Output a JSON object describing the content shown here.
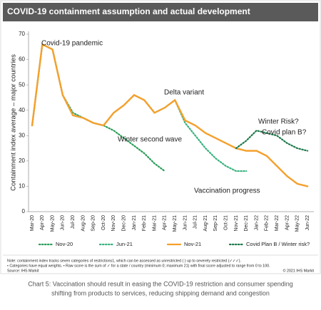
{
  "chart_data": {
    "type": "line",
    "title": "COVID-19 containment assumption and actual development",
    "y_label": "Containment index average – major countries",
    "categories": [
      "Mar-20",
      "Apr-20",
      "May-20",
      "Jun-20",
      "Jul-20",
      "Aug-20",
      "Sep-20",
      "Oct-20",
      "Nov-20",
      "Dec-20",
      "Jan-21",
      "Feb-21",
      "Mar-21",
      "Apr-21",
      "May-21",
      "Jun-21",
      "Jul-21",
      "Aug-21",
      "Sep-21",
      "Oct-21",
      "Nov-21",
      "Dec-21",
      "Jan-22",
      "Feb-22",
      "Mar-22",
      "Apr-22",
      "May-22",
      "Jun-22"
    ],
    "series": [
      {
        "name": "Nov-20",
        "color": "#2e9e5b",
        "dash": true,
        "values": [
          34,
          66,
          64,
          46,
          39,
          37,
          35,
          34,
          32,
          29,
          26,
          23,
          19,
          16,
          null,
          null,
          null,
          null,
          null,
          null,
          null,
          null,
          null,
          null,
          null,
          null,
          null,
          null
        ]
      },
      {
        "name": "Jun-21",
        "color": "#3bb27f",
        "dash": true,
        "values": [
          34,
          66,
          64,
          46,
          38,
          37,
          35,
          34,
          39,
          42,
          46,
          44,
          39,
          41,
          44,
          35,
          30,
          25,
          21,
          18,
          16,
          16,
          null,
          null,
          null,
          null,
          null,
          null
        ]
      },
      {
        "name": "Nov-21",
        "color": "#f5a02c",
        "dash": false,
        "values": [
          34,
          66,
          64,
          46,
          38,
          37,
          35,
          34,
          39,
          42,
          46,
          44,
          39,
          41,
          44,
          36,
          34,
          31,
          29,
          27,
          25,
          24,
          24,
          22,
          18,
          14,
          11,
          10
        ]
      },
      {
        "name": "Covid Plan B / Winter risk?",
        "color": "#1e7a4c",
        "dash": true,
        "values": [
          null,
          null,
          null,
          null,
          null,
          null,
          null,
          null,
          null,
          null,
          null,
          null,
          null,
          null,
          null,
          null,
          null,
          null,
          null,
          null,
          25,
          28,
          32,
          31,
          30,
          27,
          25,
          24
        ]
      }
    ],
    "annotations": [
      "Covid-19 pandemic",
      "Delta variant",
      "Winter second wave",
      "Winter Risk?",
      "Covid plan B?",
      "Vaccination progress"
    ],
    "ylim": [
      0,
      70
    ],
    "yticks": [
      0,
      10,
      20,
      30,
      40,
      50,
      60,
      70
    ],
    "grid": false
  },
  "notes": [
    "Note: containment index tracks seven categories of restrictions1, which can be assessed as unrestricted ( ) up to severely restricted (✓✓✓).",
    "• Categories have equal weights. • Raw score is the sum of ✓ for a state / country (minimum 0; maximum 21) with final score adjusted to range from 0 to 100.",
    "Source: IHS Markit"
  ],
  "copyright": "© 2021 IHS Markit",
  "caption": [
    "Chart 5: Vaccination should result in easing the COVID-19 restriction and consumer spending",
    "shifting from products to services, reducing shipping demand and congestion"
  ]
}
